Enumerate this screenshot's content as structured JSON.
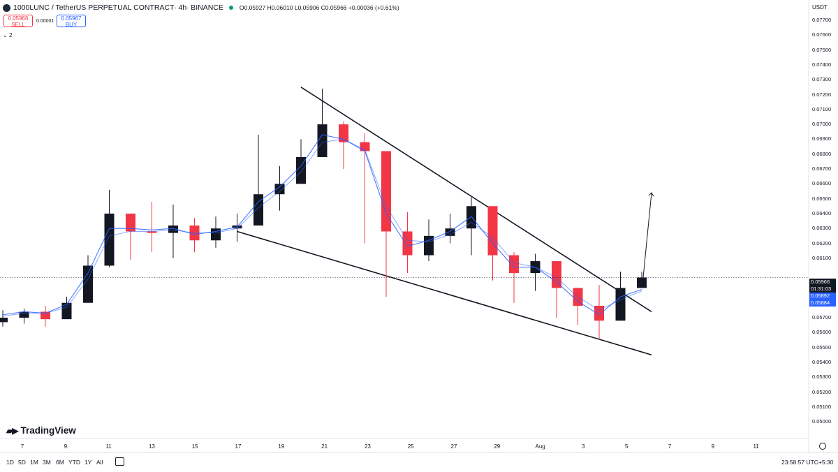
{
  "header": {
    "symbol": "1000LUNC / TetherUS PERPETUAL CONTRACT",
    "interval": "4h",
    "exchange": "BINANCE",
    "ohlc_open": "O0.05927",
    "ohlc_high": "H0.06010",
    "ohlc_low": "L0.05906",
    "ohlc_close": "C0.05966",
    "ohlc_change": "+0.00036 (+0.61%)"
  },
  "trade": {
    "sell_price": "0.05966",
    "sell_label": "SELL",
    "spread": "0.00001",
    "buy_price": "0.05967",
    "buy_label": "BUY"
  },
  "indicators_count": "2",
  "price_axis": {
    "currency": "USDT",
    "ticks": [
      "0.07700",
      "0.07600",
      "0.07500",
      "0.07400",
      "0.07300",
      "0.07200",
      "0.07100",
      "0.07000",
      "0.06900",
      "0.06800",
      "0.06700",
      "0.06600",
      "0.06500",
      "0.06400",
      "0.06300",
      "0.06200",
      "0.06100",
      "0.05700",
      "0.05600",
      "0.05500",
      "0.05400",
      "0.05300",
      "0.05200",
      "0.05100",
      "0.05000"
    ],
    "last_price": "0.05966",
    "countdown": "01:31:03",
    "ma_fast": "0.05892",
    "ma_slow": "0.05884"
  },
  "time_axis": {
    "ticks": [
      "7",
      "9",
      "11",
      "13",
      "15",
      "17",
      "19",
      "21",
      "23",
      "25",
      "27",
      "29",
      "Aug",
      "3",
      "5",
      "7",
      "9",
      "11"
    ]
  },
  "branding": {
    "logo": "TradingView"
  },
  "bottom_bar": {
    "ranges": [
      "1D",
      "5D",
      "1M",
      "3M",
      "6M",
      "YTD",
      "1Y",
      "All"
    ],
    "clock": "23:58:57 UTC+5:30"
  },
  "colors": {
    "up": "#131722",
    "down": "#f23645",
    "ma": "#2962ff",
    "trendline": "#131722"
  },
  "icons": [
    "symbol-icon",
    "live-dot-icon",
    "chevron-down-icon",
    "goto-date-icon",
    "settings-icon",
    "trending-arrow-icon"
  ],
  "chart_data": {
    "type": "candlestick",
    "x": [
      "Jul 6",
      "Jul 7",
      "Jul 8",
      "Jul 9",
      "Jul 10",
      "Jul 11",
      "Jul 12",
      "Jul 13",
      "Jul 14",
      "Jul 15",
      "Jul 16",
      "Jul 17",
      "Jul 18",
      "Jul 19",
      "Jul 20",
      "Jul 21",
      "Jul 22",
      "Jul 23",
      "Jul 24",
      "Jul 25",
      "Jul 26",
      "Jul 27",
      "Jul 28",
      "Jul 29",
      "Jul 30",
      "Jul 31",
      "Aug 1",
      "Aug 2",
      "Aug 3",
      "Aug 4",
      "Aug 5"
    ],
    "series": [
      {
        "close": [
          0.057,
          0.0574,
          0.0569,
          0.058,
          0.0605,
          0.064,
          0.0628,
          0.0627,
          0.0632,
          0.0622,
          0.063,
          0.0632,
          0.0653,
          0.066,
          0.0678,
          0.07,
          0.0688,
          0.0682,
          0.0628,
          0.0612,
          0.0625,
          0.063,
          0.0645,
          0.0612,
          0.06,
          0.0608,
          0.059,
          0.0578,
          0.0568,
          0.059,
          0.0597
        ],
        "high": [
          0.0575,
          0.0576,
          0.0578,
          0.0584,
          0.0612,
          0.0656,
          0.0638,
          0.0648,
          0.0646,
          0.0637,
          0.0638,
          0.064,
          0.0693,
          0.0672,
          0.069,
          0.0724,
          0.0702,
          0.0694,
          0.0632,
          0.0641,
          0.0636,
          0.064,
          0.0651,
          0.0638,
          0.0614,
          0.0613,
          0.0607,
          0.059,
          0.0592,
          0.0601,
          0.0601
        ],
        "low": [
          0.0564,
          0.0566,
          0.0564,
          0.0571,
          0.0584,
          0.0604,
          0.0609,
          0.0614,
          0.061,
          0.0614,
          0.0617,
          0.0621,
          0.0643,
          0.0642,
          0.0662,
          0.068,
          0.067,
          0.062,
          0.0584,
          0.06,
          0.0608,
          0.062,
          0.0612,
          0.0595,
          0.058,
          0.0588,
          0.057,
          0.0565,
          0.0555,
          0.058,
          0.059
        ]
      },
      {
        "name": "",
        "values": [
          0.0572,
          0.0574,
          0.0573,
          0.0579,
          0.06,
          0.063,
          0.063,
          0.0629,
          0.063,
          0.0626,
          0.0628,
          0.0631,
          0.0648,
          0.0658,
          0.0672,
          0.0693,
          0.069,
          0.0682,
          0.064,
          0.0618,
          0.0622,
          0.0628,
          0.0638,
          0.062,
          0.0604,
          0.0604,
          0.0594,
          0.0581,
          0.0572,
          0.0584,
          0.0589
        ]
      },
      {
        "name": "",
        "values": [
          0.0571,
          0.0573,
          0.0573,
          0.0577,
          0.0596,
          0.0625,
          0.0628,
          0.0628,
          0.0629,
          0.0627,
          0.0627,
          0.063,
          0.0644,
          0.0655,
          0.0668,
          0.0688,
          0.069,
          0.0683,
          0.0645,
          0.0622,
          0.0621,
          0.0626,
          0.0634,
          0.0624,
          0.0607,
          0.0604,
          0.0597,
          0.0584,
          0.0575,
          0.0582,
          0.0588
        ]
      }
    ],
    "trendlines": [
      {
        "from": [
          "Jul 20",
          0.0725
        ],
        "to": [
          "Aug 5",
          0.0574
        ]
      },
      {
        "from": [
          "Jul 17",
          0.0628
        ],
        "to": [
          "Aug 5",
          0.0545
        ]
      },
      {
        "from": [
          "Aug 5",
          0.0597
        ],
        "to": [
          "Aug 5",
          0.0654
        ]
      }
    ],
    "ylim": [
      0.0495,
      0.078
    ],
    "y_scale": "linear",
    "grid": false
  }
}
